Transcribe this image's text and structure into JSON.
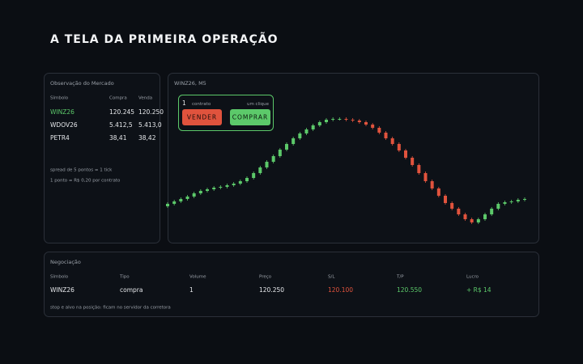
{
  "header": {
    "title": "A TELA DA PRIMEIRA OPERAÇÃO"
  },
  "market_watch": {
    "title": "Observação do Mercado",
    "columns": [
      "Símbolo",
      "Compra",
      "Venda"
    ],
    "rows": [
      [
        "WINZ26",
        "120.245",
        "120.250"
      ],
      [
        "WDOV26",
        "5.412,5",
        "5.413,0"
      ],
      [
        "PETR4",
        "38,41",
        "38,42"
      ]
    ],
    "notes": [
      "spread de 5 pontos = 1 tick",
      "1 ponto = R$ 0,20 por contrato"
    ]
  },
  "order_widget": {
    "quantity": "1",
    "quantity_label": "contrato",
    "mode": "um clique",
    "sell": "VENDER",
    "buy": "COMPRAR"
  },
  "chart_data": {
    "type": "candlestick",
    "title": "WINZ26, M5",
    "up_color": "#5cc96a",
    "down_color": "#e0533d",
    "ylim": [
      119900,
      120240
    ],
    "open": [
      119970,
      119976,
      119982,
      119988,
      119994,
      120002,
      120008,
      120012,
      120016,
      120018,
      120022,
      120026,
      120032,
      120040,
      120052,
      120066,
      120080,
      120094,
      120110,
      120124,
      120138,
      120150,
      120160,
      120170,
      120178,
      120184,
      120186,
      120186,
      120184,
      120182,
      120178,
      120172,
      120164,
      120152,
      120138,
      120124,
      120108,
      120090,
      120072,
      120052,
      120032,
      120014,
      119996,
      119978,
      119964,
      119950,
      119938,
      119930,
      119938,
      119950,
      119964,
      119976,
      119980,
      119982,
      119986
    ],
    "close": [
      119976,
      119982,
      119988,
      119994,
      120002,
      120008,
      120012,
      120016,
      120018,
      120022,
      120026,
      120032,
      120040,
      120052,
      120066,
      120080,
      120094,
      120110,
      120124,
      120138,
      120150,
      120160,
      120170,
      120178,
      120184,
      120186,
      120186,
      120184,
      120182,
      120178,
      120172,
      120164,
      120152,
      120138,
      120124,
      120108,
      120090,
      120072,
      120052,
      120032,
      120014,
      119996,
      119978,
      119964,
      119950,
      119938,
      119930,
      119938,
      119950,
      119964,
      119976,
      119980,
      119982,
      119986,
      119988
    ],
    "high": [
      119980,
      119986,
      119992,
      119998,
      120006,
      120012,
      120016,
      120020,
      120022,
      120026,
      120030,
      120036,
      120044,
      120056,
      120070,
      120084,
      120098,
      120114,
      120128,
      120142,
      120154,
      120164,
      120174,
      120182,
      120188,
      120190,
      120190,
      120190,
      120188,
      120186,
      120182,
      120176,
      120168,
      120156,
      120142,
      120128,
      120112,
      120094,
      120076,
      120056,
      120036,
      120018,
      120000,
      119982,
      119968,
      119954,
      119942,
      119942,
      119954,
      119968,
      119980,
      119984,
      119986,
      119990,
      119992
    ],
    "low": [
      119966,
      119972,
      119978,
      119984,
      119990,
      119998,
      120004,
      120008,
      120012,
      120014,
      120018,
      120022,
      120028,
      120036,
      120048,
      120062,
      120076,
      120090,
      120106,
      120120,
      120134,
      120146,
      120156,
      120166,
      120174,
      120180,
      120182,
      120180,
      120178,
      120174,
      120168,
      120160,
      120148,
      120134,
      120120,
      120104,
      120086,
      120068,
      120048,
      120028,
      120010,
      119992,
      119974,
      119960,
      119946,
      119934,
      119926,
      119926,
      119934,
      119946,
      119960,
      119972,
      119976,
      119978,
      119982
    ]
  },
  "trades": {
    "title": "Negociação",
    "columns": [
      "Símbolo",
      "Tipo",
      "Volume",
      "Preço",
      "S/L",
      "T/P",
      "Lucro"
    ],
    "rows": [
      [
        "WINZ26",
        "compra",
        "1",
        "120.250",
        "120.100",
        "120.550",
        "+ R$ 14"
      ]
    ],
    "note": "stop e alvo na posição: ficam no servidor da corretora"
  }
}
